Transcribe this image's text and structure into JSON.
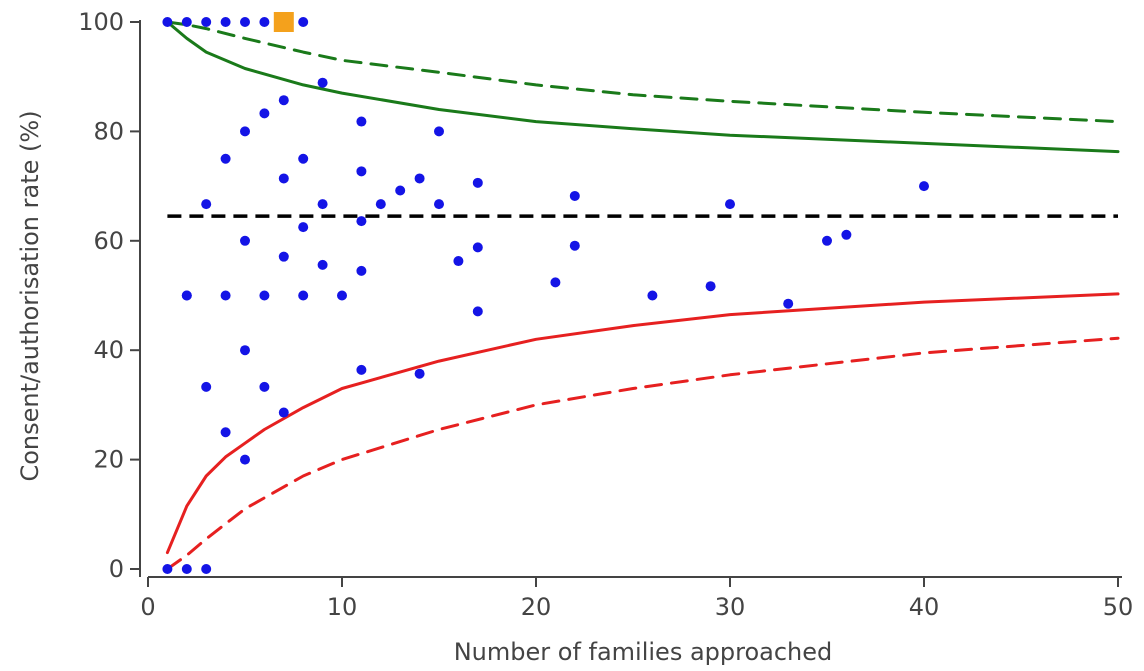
{
  "chart_data": {
    "type": "scatter",
    "xlabel": "Number of families approached",
    "ylabel": "Consent/authorisation rate (%)",
    "xlim": [
      0,
      50
    ],
    "ylim": [
      0,
      100
    ],
    "xticks": [
      0,
      10,
      20,
      30,
      40,
      50
    ],
    "yticks": [
      0,
      20,
      40,
      60,
      80,
      100
    ],
    "grid": false,
    "reference_line": {
      "y": 64.5,
      "color": "#000000",
      "style": "dashed"
    },
    "curves": [
      {
        "color": "#1a7a1a",
        "style": "dashed",
        "x": [
          1,
          2,
          3,
          5,
          8,
          10,
          15,
          20,
          25,
          30,
          40,
          50
        ],
        "y": [
          100,
          99.5,
          98.8,
          97,
          94.5,
          93,
          90.8,
          88.5,
          86.7,
          85.5,
          83.5,
          81.8
        ]
      },
      {
        "color": "#1a7a1a",
        "style": "solid",
        "x": [
          1,
          2,
          3,
          5,
          8,
          10,
          15,
          20,
          25,
          30,
          40,
          50
        ],
        "y": [
          100,
          97,
          94.5,
          91.5,
          88.5,
          87,
          84,
          81.8,
          80.5,
          79.3,
          77.8,
          76.3
        ]
      },
      {
        "color": "#e62020",
        "style": "solid",
        "x": [
          1,
          2,
          3,
          4,
          5,
          6,
          8,
          10,
          15,
          20,
          25,
          30,
          40,
          50
        ],
        "y": [
          3,
          11.5,
          17,
          20.5,
          23,
          25.5,
          29.5,
          33,
          38,
          42,
          44.5,
          46.5,
          48.8,
          50.3
        ]
      },
      {
        "color": "#e62020",
        "style": "dashed",
        "x": [
          1,
          2,
          3,
          5,
          8,
          10,
          15,
          20,
          25,
          30,
          40,
          50
        ],
        "y": [
          0,
          2.5,
          5.5,
          11,
          17,
          20,
          25.5,
          30,
          33,
          35.5,
          39.5,
          42.2
        ]
      }
    ],
    "points": {
      "color": "#1414e6",
      "x": [
        1,
        2,
        3,
        4,
        5,
        6,
        8,
        1,
        2,
        3,
        2,
        2,
        3,
        3,
        4,
        4,
        4,
        5,
        5,
        5,
        5,
        6,
        6,
        6,
        7,
        7,
        7,
        7,
        8,
        8,
        8,
        9,
        9,
        9,
        10,
        11,
        11,
        11,
        11,
        11,
        12,
        13,
        14,
        14,
        15,
        15,
        16,
        17,
        17,
        17,
        21,
        22,
        22,
        26,
        29,
        30,
        33,
        35,
        36,
        40
      ],
      "y": [
        100,
        100,
        100,
        100,
        100,
        100,
        100,
        0,
        0,
        0,
        50,
        50,
        66.7,
        33.3,
        75,
        50,
        25,
        80,
        60,
        40,
        20,
        83.3,
        50,
        33.3,
        85.7,
        71.4,
        57.1,
        28.6,
        75,
        62.5,
        50,
        88.9,
        66.7,
        55.6,
        50,
        81.8,
        72.7,
        63.6,
        54.5,
        36.4,
        66.7,
        69.2,
        71.4,
        35.7,
        80,
        66.7,
        56.3,
        70.6,
        58.8,
        47.1,
        52.4,
        68.2,
        59.1,
        50,
        51.7,
        66.7,
        48.5,
        60,
        61.1,
        70
      ]
    },
    "highlight_point": {
      "x": 7,
      "y": 100,
      "color": "#f4a11c",
      "shape": "square"
    }
  }
}
